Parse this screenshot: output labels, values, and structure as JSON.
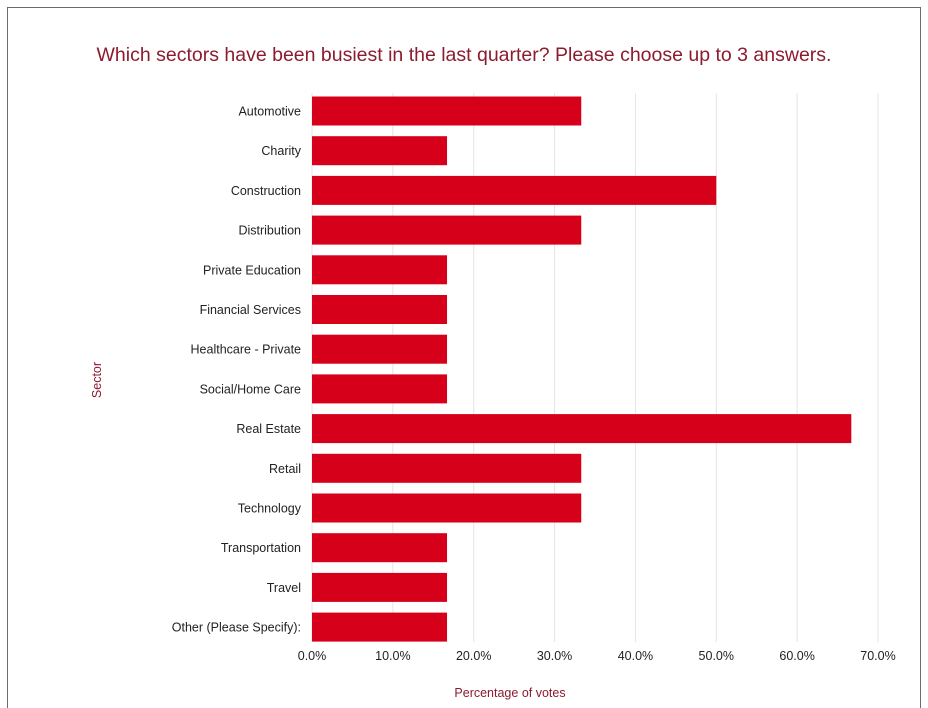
{
  "chart_data": {
    "type": "bar",
    "orientation": "horizontal",
    "title": "Which sectors have been busiest in the last quarter? Please choose up to 3 answers.",
    "xlabel": "Percentage of votes",
    "ylabel": "Sector",
    "categories": [
      "Automotive",
      "Charity",
      "Construction",
      "Distribution",
      "Private Education",
      "Financial Services",
      "Healthcare - Private",
      "Social/Home Care",
      "Real Estate",
      "Retail",
      "Technology",
      "Transportation",
      "Travel",
      "Other (Please Specify):"
    ],
    "values": [
      33.3,
      16.7,
      50.0,
      33.3,
      16.7,
      16.7,
      16.7,
      16.7,
      66.7,
      33.3,
      33.3,
      16.7,
      16.7,
      16.7
    ],
    "xlim": [
      0,
      70
    ],
    "xticks": [
      "0.0%",
      "10.0%",
      "20.0%",
      "30.0%",
      "40.0%",
      "50.0%",
      "60.0%",
      "70.0%"
    ],
    "grid": "vertical",
    "bar_color": "#d7001a",
    "title_color": "#8c1b2f"
  }
}
